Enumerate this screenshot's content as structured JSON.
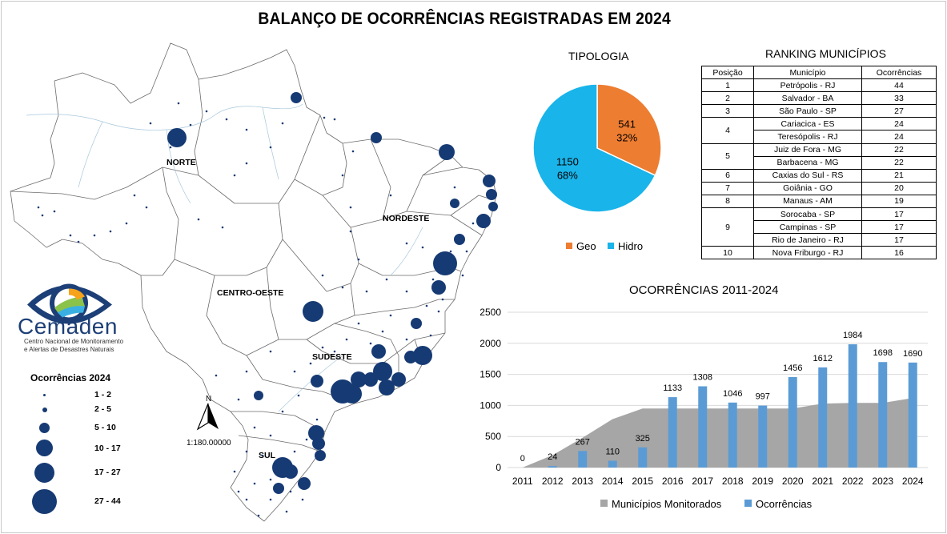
{
  "title": "BALANÇO DE OCORRÊNCIAS REGISTRADAS EM 2024",
  "map": {
    "regions": [
      "NORTE",
      "NORDESTE",
      "CENTRO-OESTE",
      "SUDESTE",
      "SUL"
    ],
    "north_arrow": "N",
    "scale": "1:180.00000",
    "legend": {
      "title": "Ocorrências 2024",
      "items": [
        "1 - 2",
        "2 - 5",
        "5 - 10",
        "10 - 17",
        "17 - 27",
        "27 - 44"
      ]
    }
  },
  "logo": {
    "name": "Cemaden",
    "subtitle_line1": "Centro Nacional de Monitoramento",
    "subtitle_line2": "e Alertas de Desastres Naturais"
  },
  "colors": {
    "map_marker": "#163a73",
    "geo": "#ed7d31",
    "hidro": "#19b4ea",
    "monitored_area": "#a6a6a6",
    "occurrences_bar": "#5b9bd5"
  },
  "ranking": {
    "title": "RANKING MUNICÍPIOS",
    "headers": [
      "Posição",
      "Município",
      "Ocorrências"
    ],
    "groups": [
      {
        "position": "1",
        "rows": [
          [
            "Petrópolis - RJ",
            "44"
          ]
        ]
      },
      {
        "position": "2",
        "rows": [
          [
            "Salvador - BA",
            "33"
          ]
        ]
      },
      {
        "position": "3",
        "rows": [
          [
            "São Paulo - SP",
            "27"
          ]
        ]
      },
      {
        "position": "4",
        "rows": [
          [
            "Cariacica - ES",
            "24"
          ],
          [
            "Teresópolis - RJ",
            "24"
          ]
        ]
      },
      {
        "position": "5",
        "rows": [
          [
            "Juiz de Fora - MG",
            "22"
          ],
          [
            "Barbacena - MG",
            "22"
          ]
        ]
      },
      {
        "position": "6",
        "rows": [
          [
            "Caxias do Sul - RS",
            "21"
          ]
        ]
      },
      {
        "position": "7",
        "rows": [
          [
            "Goiânia - GO",
            "20"
          ]
        ]
      },
      {
        "position": "8",
        "rows": [
          [
            "Manaus - AM",
            "19"
          ]
        ]
      },
      {
        "position": "9",
        "rows": [
          [
            "Sorocaba - SP",
            "17"
          ],
          [
            "Campinas - SP",
            "17"
          ],
          [
            "Rio de Janeiro - RJ",
            "17"
          ]
        ]
      },
      {
        "position": "10",
        "rows": [
          [
            "Nova Friburgo - RJ",
            "16"
          ]
        ]
      }
    ]
  },
  "chart_data": [
    {
      "type": "pie",
      "title": "TIPOLOGIA",
      "slices": [
        {
          "name": "Geo",
          "value": 541,
          "percent_label": "32%"
        },
        {
          "name": "Hidro",
          "value": 1150,
          "percent_label": "68%"
        }
      ],
      "legend_position": "bottom"
    },
    {
      "type": "bar",
      "title": "OCORRÊNCIAS 2011-2024",
      "categories": [
        "2011",
        "2012",
        "2013",
        "2014",
        "2015",
        "2016",
        "2017",
        "2018",
        "2019",
        "2020",
        "2021",
        "2022",
        "2023",
        "2024"
      ],
      "series": [
        {
          "name": "Municípios Monitorados",
          "kind": "area",
          "values": [
            0,
            200,
            480,
            780,
            950,
            950,
            950,
            950,
            950,
            950,
            1030,
            1040,
            1040,
            1120
          ]
        },
        {
          "name": "Ocorrências",
          "kind": "bar",
          "values": [
            0,
            24,
            267,
            110,
            325,
            1133,
            1308,
            1046,
            997,
            1456,
            1612,
            1984,
            1698,
            1690
          ]
        }
      ],
      "ylim": [
        0,
        2500
      ],
      "yticks": [
        "0",
        "500",
        "1000",
        "1500",
        "2000",
        "2500"
      ],
      "grid": true,
      "legend_position": "bottom"
    }
  ]
}
